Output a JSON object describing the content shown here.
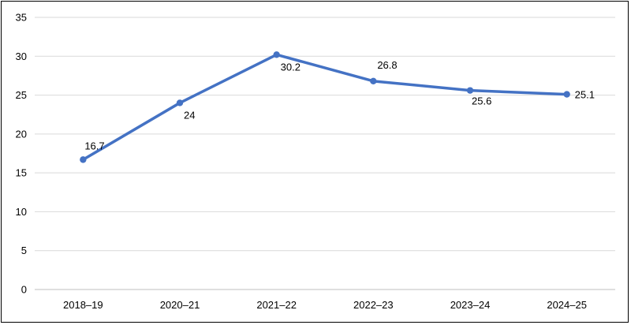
{
  "chart_data": {
    "type": "line",
    "title": "",
    "xlabel": "",
    "ylabel": "",
    "categories": [
      "2018–19",
      "2020–21",
      "2021–22",
      "2022–23",
      "2023–24",
      "2024–25"
    ],
    "series": [
      {
        "values": [
          16.7,
          24,
          30.2,
          26.8,
          25.6,
          25.1
        ],
        "labels": [
          "16.7",
          "24",
          "30.2",
          "26.8",
          "25.6",
          "25.1"
        ],
        "color": "#4472c4"
      }
    ],
    "ylim": [
      0,
      35
    ],
    "yticks": [
      "0",
      "5",
      "10",
      "15",
      "20",
      "25",
      "30",
      "35"
    ],
    "grid": true,
    "legend": "none"
  }
}
